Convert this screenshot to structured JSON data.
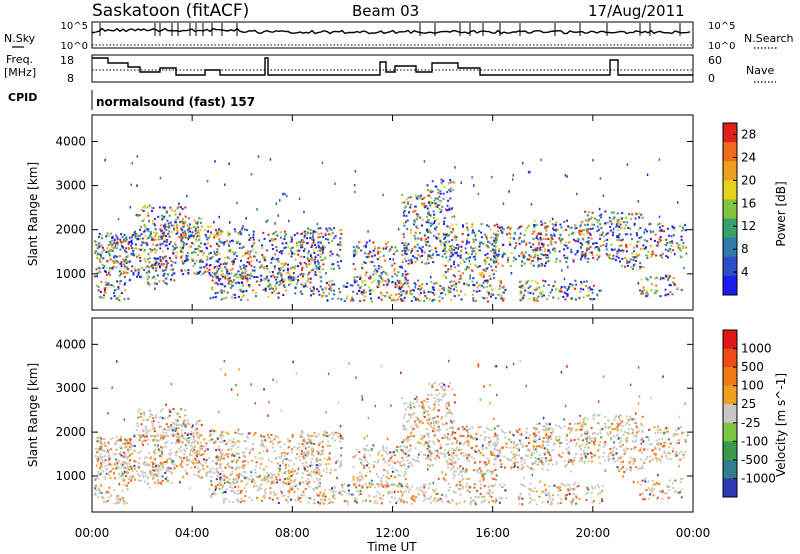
{
  "header": {
    "station": "Saskatoon (fitACF)",
    "beam": "Beam 03",
    "date": "17/Aug/2011"
  },
  "panels": {
    "nsky_label": "N.Sky",
    "nsearch_label": "N.Search",
    "freq_label_line1": "Freq.",
    "freq_label_line2": "[MHz]",
    "nave_label": "Nave",
    "cpid_label": "CPID",
    "cpid_value": "normalsound (fast) 157",
    "nsky_ticks": [
      "10^5",
      "10^0"
    ],
    "nsearch_ticks": [
      "10^5",
      "10^0"
    ],
    "freq_ticks": [
      "18",
      "8"
    ],
    "nave_ticks": [
      "60",
      "0"
    ]
  },
  "chart_data": [
    {
      "type": "heatmap",
      "title": "",
      "xlabel": "Time UT",
      "ylabel": "Slant Range [km]",
      "xlim": [
        0,
        24
      ],
      "ylim": [
        180,
        4600
      ],
      "x_ticks": [
        "00:00",
        "04:00",
        "08:00",
        "12:00",
        "16:00",
        "20:00",
        "00:00"
      ],
      "y_ticks": [
        1000,
        2000,
        3000,
        4000
      ],
      "colorbar": {
        "label": "Power [dB]",
        "ticks": [
          4,
          8,
          12,
          16,
          20,
          24,
          28
        ],
        "range": [
          0,
          30
        ],
        "colors": [
          "#1c1cee",
          "#2a4fc8",
          "#2f7aa8",
          "#3aa06a",
          "#7fc63c",
          "#e6d21e",
          "#f0a020",
          "#f26a1c",
          "#e0201a"
        ]
      }
    },
    {
      "type": "heatmap",
      "title": "",
      "xlabel": "Time UT",
      "ylabel": "Slant Range [km]",
      "xlim": [
        0,
        24
      ],
      "ylim": [
        180,
        4600
      ],
      "x_ticks": [
        "00:00",
        "04:00",
        "08:00",
        "12:00",
        "16:00",
        "20:00",
        "00:00"
      ],
      "y_ticks": [
        1000,
        2000,
        3000,
        4000
      ],
      "colorbar": {
        "label": "Velocity [m s^-1]",
        "ticks": [
          "1000",
          "500",
          "100",
          "25",
          "-25",
          "-100",
          "-500",
          "-1000"
        ],
        "colors": [
          "#2c3ab4",
          "#2f7d8f",
          "#3a9a4a",
          "#7cc640",
          "#c6c6c2",
          "#f0a020",
          "#f07a18",
          "#ee4a16",
          "#e01818"
        ]
      }
    }
  ],
  "colors": {
    "ground_scatter": "#c8c8c2",
    "frame": "#000000"
  }
}
